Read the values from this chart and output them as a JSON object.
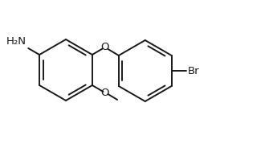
{
  "bg_color": "#ffffff",
  "line_color": "#1a1a1a",
  "line_width": 1.4,
  "font_size": 9.5,
  "label_NH2": "H₂N",
  "label_O1": "O",
  "label_O2": "O",
  "label_Br": "Br",
  "figsize": [
    3.35,
    1.84
  ],
  "dpi": 100
}
